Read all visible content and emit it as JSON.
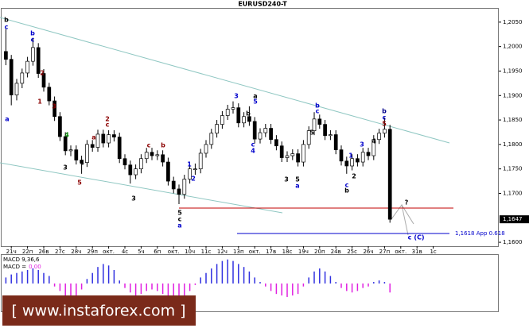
{
  "chart_data": [
    {
      "type": "candlestick",
      "title": "EURUSD240-T",
      "ylim": [
        1.1592,
        1.2079
      ],
      "yticks": [
        {
          "value": 1.205,
          "label": "1,2050"
        },
        {
          "value": 1.2,
          "label": "1,2000"
        },
        {
          "value": 1.195,
          "label": "1,1950"
        },
        {
          "value": 1.19,
          "label": "1,1900"
        },
        {
          "value": 1.185,
          "label": "1,1850"
        },
        {
          "value": 1.18,
          "label": "1,1800"
        },
        {
          "value": 1.175,
          "label": "1,1750"
        },
        {
          "value": 1.17,
          "label": "1,1700"
        },
        {
          "value": 1.16,
          "label": "1,1600"
        }
      ],
      "current_price": {
        "value": 1.1647,
        "label": "1,1647"
      },
      "up_color": "#ffffff",
      "down_color": "#000000",
      "categories": [
        null,
        "21ч",
        null,
        null,
        "22п",
        null,
        null,
        "26в",
        null,
        null,
        "27с",
        null,
        null,
        "28ч",
        null,
        null,
        "29п",
        null,
        null,
        "окт.",
        null,
        null,
        "4с",
        null,
        null,
        "5ч",
        null,
        null,
        "6п",
        null,
        null,
        "окт.",
        null,
        null,
        "10ч",
        null,
        null,
        "11с",
        null,
        null,
        "12ч",
        null,
        null,
        "13п",
        null,
        null,
        "окт.",
        null,
        null,
        "17в",
        null,
        null,
        "18с",
        null,
        null,
        "19ч",
        null,
        null,
        "20п",
        null,
        null,
        "24в",
        null,
        null,
        "25с",
        null,
        null,
        "26ч",
        null,
        null,
        "27п",
        null,
        null,
        "окт.",
        null,
        null,
        "31в",
        null,
        null,
        "1с",
        null,
        null,
        null,
        null
      ],
      "ohlc": [
        [
          1.199,
          1.2036,
          1.1962,
          1.1974
        ],
        [
          1.1974,
          1.1983,
          1.188,
          1.1901
        ],
        [
          1.1901,
          1.1934,
          1.189,
          1.1925
        ],
        [
          1.1925,
          1.1955,
          1.1915,
          1.1946
        ],
        [
          1.1946,
          1.1979,
          1.1937,
          1.197
        ],
        [
          1.197,
          1.2018,
          1.1961,
          1.1998
        ],
        [
          1.1998,
          1.2007,
          1.1936,
          1.1945
        ],
        [
          1.1945,
          1.1954,
          1.1908,
          1.1917
        ],
        [
          1.1917,
          1.1926,
          1.188,
          1.1889
        ],
        [
          1.1889,
          1.1898,
          1.1848,
          1.1857
        ],
        [
          1.1857,
          1.1866,
          1.1807,
          1.1816
        ],
        [
          1.1816,
          1.1825,
          1.1778,
          1.1787
        ],
        [
          1.1787,
          1.1798,
          1.1776,
          1.1789
        ],
        [
          1.1789,
          1.1798,
          1.1759,
          1.1768
        ],
        [
          1.1768,
          1.1777,
          1.174,
          1.1763
        ],
        [
          1.1763,
          1.1809,
          1.1754,
          1.18
        ],
        [
          1.18,
          1.1809,
          1.1785,
          1.1794
        ],
        [
          1.1794,
          1.183,
          1.1785,
          1.1821
        ],
        [
          1.1821,
          1.183,
          1.1794,
          1.1803
        ],
        [
          1.1803,
          1.1829,
          1.1794,
          1.182
        ],
        [
          1.182,
          1.1829,
          1.1806,
          1.1815
        ],
        [
          1.1815,
          1.1824,
          1.1762,
          1.1771
        ],
        [
          1.1771,
          1.178,
          1.1749,
          1.1758
        ],
        [
          1.1758,
          1.1767,
          1.172,
          1.1738
        ],
        [
          1.1738,
          1.1759,
          1.1729,
          1.175
        ],
        [
          1.175,
          1.178,
          1.1741,
          1.1771
        ],
        [
          1.1771,
          1.1793,
          1.1762,
          1.1784
        ],
        [
          1.1784,
          1.1793,
          1.1768,
          1.1777
        ],
        [
          1.1777,
          1.1788,
          1.1768,
          1.1779
        ],
        [
          1.1779,
          1.1788,
          1.1755,
          1.1764
        ],
        [
          1.1764,
          1.1773,
          1.1716,
          1.1725
        ],
        [
          1.1725,
          1.1734,
          1.17,
          1.1709
        ],
        [
          1.1709,
          1.1718,
          1.1678,
          1.1698
        ],
        [
          1.1698,
          1.1738,
          1.1689,
          1.1729
        ],
        [
          1.1729,
          1.1759,
          1.172,
          1.175
        ],
        [
          1.175,
          1.1761,
          1.1738,
          1.175
        ],
        [
          1.175,
          1.1791,
          1.1741,
          1.1782
        ],
        [
          1.1782,
          1.1809,
          1.1773,
          1.18
        ],
        [
          1.18,
          1.1832,
          1.1791,
          1.1823
        ],
        [
          1.1823,
          1.185,
          1.1814,
          1.1841
        ],
        [
          1.1841,
          1.1868,
          1.1832,
          1.1859
        ],
        [
          1.1859,
          1.1881,
          1.185,
          1.1872
        ],
        [
          1.1872,
          1.1888,
          1.1863,
          1.1875
        ],
        [
          1.1875,
          1.1884,
          1.1835,
          1.1844
        ],
        [
          1.1844,
          1.1866,
          1.1835,
          1.1857
        ],
        [
          1.1857,
          1.1878,
          1.1838,
          1.1847
        ],
        [
          1.1847,
          1.1856,
          1.1802,
          1.1811
        ],
        [
          1.1811,
          1.1833,
          1.1802,
          1.1824
        ],
        [
          1.1824,
          1.1842,
          1.1815,
          1.1833
        ],
        [
          1.1833,
          1.1842,
          1.1801,
          1.181
        ],
        [
          1.181,
          1.1819,
          1.1788,
          1.1797
        ],
        [
          1.1797,
          1.1806,
          1.1764,
          1.1773
        ],
        [
          1.1773,
          1.1786,
          1.1764,
          1.1777
        ],
        [
          1.1777,
          1.179,
          1.1768,
          1.1781
        ],
        [
          1.1781,
          1.179,
          1.1755,
          1.1764
        ],
        [
          1.1764,
          1.1809,
          1.1755,
          1.18
        ],
        [
          1.18,
          1.1837,
          1.1791,
          1.1828
        ],
        [
          1.1828,
          1.1866,
          1.1819,
          1.1852
        ],
        [
          1.1852,
          1.1861,
          1.1832,
          1.1841
        ],
        [
          1.1841,
          1.185,
          1.1809,
          1.1818
        ],
        [
          1.1818,
          1.1829,
          1.1809,
          1.182
        ],
        [
          1.182,
          1.1829,
          1.178,
          1.1789
        ],
        [
          1.1789,
          1.1798,
          1.1757,
          1.1766
        ],
        [
          1.1766,
          1.1775,
          1.174,
          1.1756
        ],
        [
          1.1756,
          1.178,
          1.1747,
          1.1771
        ],
        [
          1.1771,
          1.178,
          1.1755,
          1.1764
        ],
        [
          1.1764,
          1.1793,
          1.1755,
          1.1784
        ],
        [
          1.1784,
          1.1793,
          1.1768,
          1.1777
        ],
        [
          1.1777,
          1.1819,
          1.1768,
          1.181
        ],
        [
          1.181,
          1.1832,
          1.1801,
          1.1823
        ],
        [
          1.1823,
          1.1855,
          1.1814,
          1.1831
        ],
        [
          1.1831,
          1.184,
          1.164,
          1.1647
        ],
        null,
        null,
        null,
        null,
        null,
        null,
        null,
        null,
        null,
        null,
        null,
        null
      ],
      "levels": [
        {
          "value": 1.167,
          "color": "#c00000"
        },
        {
          "value": 1.1618,
          "label": "1,1618 App 0.618",
          "color": "#0000cc"
        }
      ],
      "annotations": [
        {
          "text": "b",
          "color": "#000000"
        },
        {
          "text": "c",
          "color": "#0000cc"
        },
        {
          "text": "b",
          "color": "#0000cc"
        },
        {
          "text": "c",
          "color": "#0000cc"
        },
        {
          "text": "2",
          "color": "#8b0000"
        },
        {
          "text": "a",
          "color": "#0000cc"
        },
        {
          "text": "1",
          "color": "#8b0000"
        },
        {
          "text": "3",
          "color": "#8b0000"
        },
        {
          "text": "4",
          "color": "#008000"
        },
        {
          "text": "5",
          "color": "#8b0000"
        },
        {
          "text": "3",
          "color": "#000000"
        },
        {
          "text": "2",
          "color": "#8b0000"
        },
        {
          "text": "c",
          "color": "#8b0000"
        },
        {
          "text": "a",
          "color": "#8b0000"
        },
        {
          "text": "b",
          "color": "#8b0000"
        },
        {
          "text": "c",
          "color": "#8b0000"
        },
        {
          "text": "4",
          "color": "#000000"
        },
        {
          "text": "3",
          "color": "#000000"
        },
        {
          "text": "5",
          "color": "#000000"
        },
        {
          "text": "c",
          "color": "#000000"
        },
        {
          "text": "a",
          "color": "#0000cc"
        },
        {
          "text": "1",
          "color": "#0000cc"
        },
        {
          "text": "2",
          "color": "#0000cc"
        },
        {
          "text": "3",
          "color": "#0000cc"
        },
        {
          "text": "a",
          "color": "#000000"
        },
        {
          "text": "5",
          "color": "#0000cc"
        },
        {
          "text": "b",
          "color": "#000000"
        },
        {
          "text": "c",
          "color": "#0000cc"
        },
        {
          "text": "4",
          "color": "#0000cc"
        },
        {
          "text": "3",
          "color": "#000000"
        },
        {
          "text": "5",
          "color": "#000000"
        },
        {
          "text": "a",
          "color": "#0000cc"
        },
        {
          "text": "b",
          "color": "#0000cc"
        },
        {
          "text": "c",
          "color": "#0000cc"
        },
        {
          "text": "5",
          "color": "#000000"
        },
        {
          "text": "1",
          "color": "#0000cc"
        },
        {
          "text": "2",
          "color": "#000000"
        },
        {
          "text": "3",
          "color": "#0000cc"
        },
        {
          "text": "4",
          "color": "#000000"
        },
        {
          "text": "c",
          "color": "#0000cc"
        },
        {
          "text": "b",
          "color": "#000000"
        },
        {
          "text": "b",
          "color": "#00008b"
        },
        {
          "text": "c",
          "color": "#0000cc"
        },
        {
          "text": "5",
          "color": "#8b0000"
        },
        {
          "text": "?",
          "color": "#000000"
        },
        {
          "text": "c",
          "color": "#0000cc"
        },
        {
          "text": "(C)",
          "color": "#0000cc"
        }
      ]
    },
    {
      "type": "bar",
      "title": "MACD 9,36,6",
      "value_name": "MACD =",
      "value_text": "0,00",
      "value_color": "#e020e0",
      "ylim": [
        -0.0035,
        0.0037
      ],
      "up_color": "#3030e0",
      "down_color": "#e020e0",
      "values": [
        0.0008,
        0.0012,
        0.0014,
        0.0016,
        0.0018,
        0.002,
        0.0018,
        0.0014,
        0.001,
        -0.0004,
        -0.001,
        -0.0016,
        -0.0018,
        -0.0016,
        -0.0008,
        0.0006,
        0.0014,
        0.0022,
        0.0026,
        0.0024,
        0.0018,
        0.0004,
        -0.0006,
        -0.0012,
        -0.0016,
        -0.0014,
        -0.001,
        -0.0008,
        -0.001,
        -0.0014,
        -0.0018,
        -0.0022,
        -0.0024,
        -0.0018,
        -0.001,
        -0.0002,
        0.0008,
        0.0014,
        0.002,
        0.0026,
        0.003,
        0.0032,
        0.003,
        0.0026,
        0.0022,
        0.0016,
        0.0008,
        0.0002,
        -0.0004,
        -0.001,
        -0.0014,
        -0.0016,
        -0.0018,
        -0.0016,
        -0.0014,
        -0.0004,
        0.0008,
        0.0016,
        0.002,
        0.0016,
        0.001,
        0.0002,
        -0.0006,
        -0.001,
        -0.0012,
        -0.001,
        -0.0006,
        -0.0004,
        0.0002,
        0.0004,
        0.0002,
        -0.0012,
        null,
        null,
        null,
        null,
        null,
        null,
        null,
        null,
        null,
        null,
        null,
        null
      ]
    }
  ],
  "logo": "[ www.instaforex.com ]"
}
